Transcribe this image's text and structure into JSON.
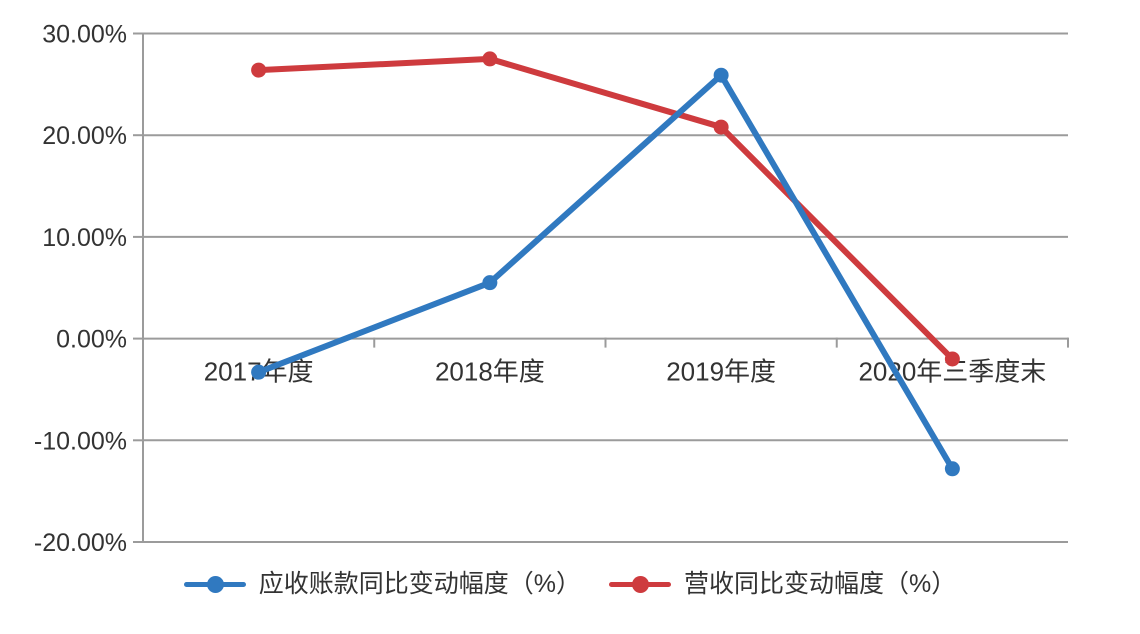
{
  "chart_data": {
    "type": "line",
    "title": "",
    "xlabel": "",
    "ylabel": "",
    "grid": true,
    "legend_position": "bottom",
    "categories": [
      "2017年度",
      "2018年度",
      "2019年度",
      "2020年三季度末"
    ],
    "series": [
      {
        "name": "应收账款同比变动幅度（%）",
        "color": "#3079C0",
        "values": [
          -3.3,
          5.5,
          25.9,
          -12.8
        ]
      },
      {
        "name": "营收同比变动幅度（%）",
        "color": "#CE3B3E",
        "values": [
          26.4,
          27.5,
          20.8,
          -2.0
        ]
      }
    ],
    "y_axis": {
      "min": -20,
      "max": 30,
      "step": 10,
      "tick_labels": [
        "30.00%",
        "20.00%",
        "10.00%",
        "0.00%",
        "-10.00%",
        "-20.00%"
      ]
    },
    "colors": {
      "gridline": "#9B9B9B",
      "axis": "#9B9B9B",
      "text": "#333333",
      "background": "#FFFFFF"
    }
  }
}
